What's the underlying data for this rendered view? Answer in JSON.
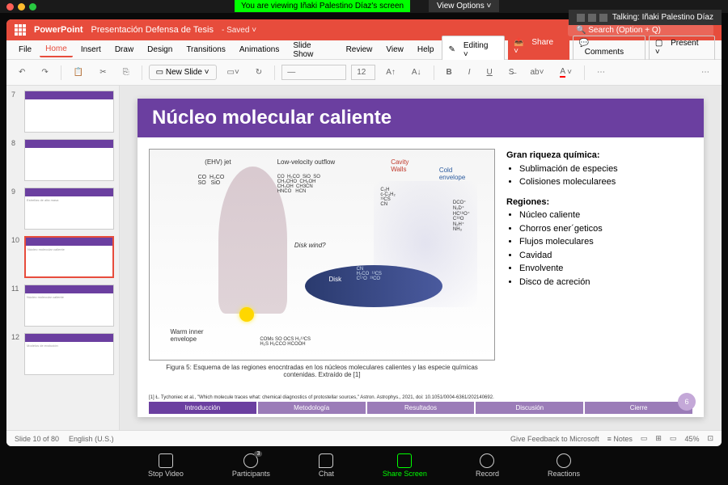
{
  "zoom": {
    "banner": "You are viewing Iñaki Palestino Díaz's screen",
    "viewOptions": "View Options ˅",
    "talking": "Talking: Iñaki Palestino Díaz",
    "controls": {
      "stopVideo": "Stop Video",
      "participants": "Participants",
      "participantCount": "3",
      "chat": "Chat",
      "shareScreen": "Share Screen",
      "record": "Record",
      "reactions": "Reactions"
    }
  },
  "traffic": {
    "r": "#ff5f57",
    "y": "#febc2e",
    "g": "#28c840"
  },
  "ppt": {
    "app": "PowerPoint",
    "doc": "Presentación Defensa de Tesis",
    "status": "- Saved ˅",
    "search": "🔍 Search (Option + Q)",
    "menu": [
      "File",
      "Home",
      "Insert",
      "Draw",
      "Design",
      "Transitions",
      "Animations",
      "Slide Show",
      "Review",
      "View",
      "Help"
    ],
    "editing": "Editing ˅",
    "share": "Share ˅",
    "comments": "Comments",
    "present": "Present ˅",
    "newSlide": "New Slide ˅",
    "ribbon": {
      "undo": "↶",
      "redo": "↷",
      "paste": "📋",
      "cut": "✂",
      "copy": "⎘",
      "fontsize": "12"
    },
    "statusL": "Slide 10 of 80",
    "lang": "English (U.S.)",
    "feedback": "Give Feedback to Microsoft",
    "notes": "Notes",
    "zoom": "45%"
  },
  "thumbs": [
    {
      "n": "7",
      "title": ""
    },
    {
      "n": "8",
      "title": ""
    },
    {
      "n": "9",
      "title": "Estrellas de alta masa"
    },
    {
      "n": "10",
      "title": "Núcleo molecular caliente",
      "sel": true
    },
    {
      "n": "11",
      "title": "Núcleo molecular caliente"
    },
    {
      "n": "12",
      "title": "Modelos de evolución"
    }
  ],
  "slide": {
    "title": "Núcleo molecular caliente",
    "titleBg": "#6b3fa0",
    "diagram": {
      "labels": {
        "ehv": "(EHV) jet",
        "ehvChem": "CO  H₂CO\nSO   SiO",
        "lowvel": "Low-velocity outflow",
        "lowvelChem": "CO  H₂CO  SiO  SO\nCH₃CHO  CH₃OH\nCH₃OH  CH3CN\nHNCO   HCN",
        "diskwind": "Disk wind?",
        "cavity": "Cavity\nWalls",
        "cavityChem": "C₂H\nc-C₃H₂\n¹³CS\nCN",
        "cold": "Cold\nenvelope",
        "coldChem": "DCO⁺\nN₂D⁺\nHC¹⁸O⁺\nC¹⁸O\nN₂H⁺\nNH₃",
        "disk": "Disk",
        "diskChem": "CN\nH₂CO  ¹³CS\nC¹⁷O  ¹³CO",
        "warm": "Warm inner\nenvelope",
        "warmChem": "COMs SO OCS H₂¹³CS\nH₂S H₂CCO HCOOH"
      }
    },
    "caption": "Figura 5: Esquema de las regiones enocntradas en los núcleos moleculares calientes y las especie químicas contenidas. Extraído de [1]",
    "text": {
      "h1": "Gran riqueza química:",
      "l1": [
        "Sublimación de especies",
        "Colisiones molecularees"
      ],
      "h2": "Regiones:",
      "l2": [
        "Núcleo caliente",
        "Chorros ener´geticos",
        "Flujos moleculares",
        "Cavidad",
        "Envolvente",
        "Disco de acreción"
      ]
    },
    "ref": "[1] Ł. Tychoniec et al., \"Which molecule traces what: chemical diagnostics of protostellar sources,\" Astron. Astrophys., 2021, doi: 10.1051/0004-6361/202140692.",
    "tabs": [
      "Introducción",
      "Metodología",
      "Resultados",
      "Discusión",
      "Cierre"
    ],
    "pageNum": "6"
  }
}
